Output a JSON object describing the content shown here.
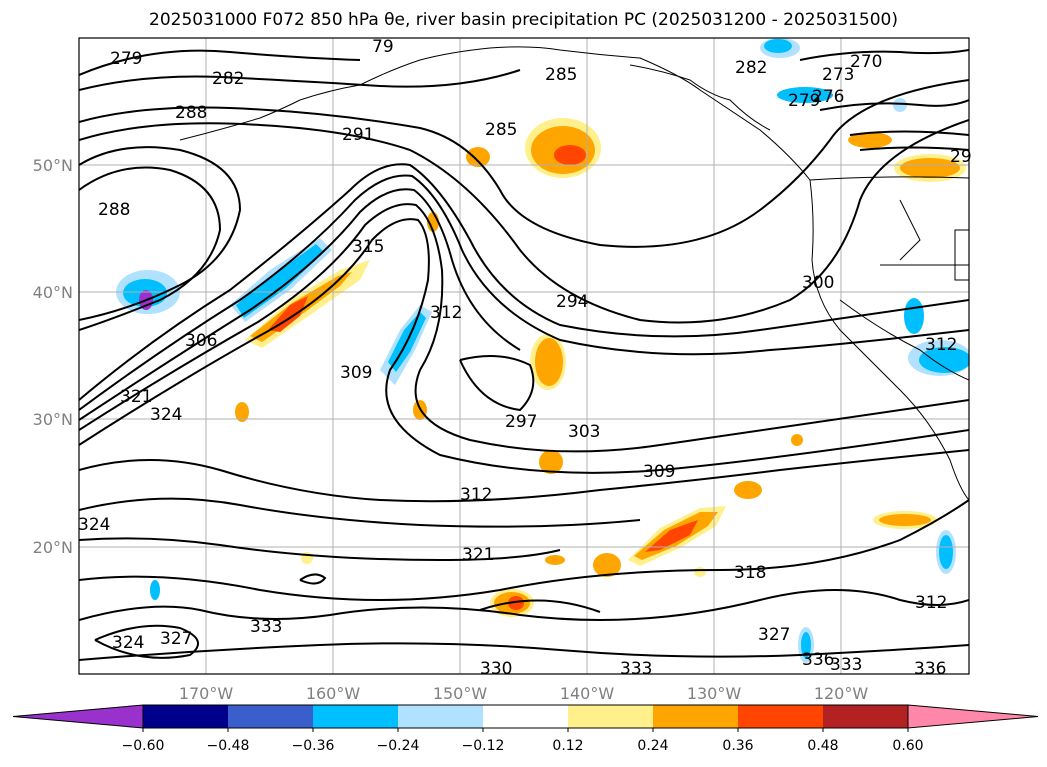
{
  "title": "2025031000 F072 850 hPa θe, river basin precipitation PC (2025031200 - 2025031500)",
  "map": {
    "lat_ticks": [
      "50°N",
      "40°N",
      "30°N",
      "20°N"
    ],
    "lon_ticks": [
      "170°W",
      "160°W",
      "150°W",
      "140°W",
      "130°W",
      "120°W"
    ],
    "contour_labels": [
      "279",
      "79",
      "282",
      "288",
      "291",
      "285",
      "285",
      "282",
      "273",
      "270",
      "276",
      "279",
      "29",
      "288",
      "315",
      "312",
      "294",
      "300",
      "306",
      "309",
      "321",
      "324",
      "297",
      "303",
      "312",
      "309",
      "312",
      "324",
      "321",
      "318",
      "312",
      "333",
      "324",
      "327",
      "327",
      "336",
      "333",
      "330",
      "333",
      "336"
    ]
  },
  "colorbar": {
    "levels": [
      "−0.60",
      "−0.48",
      "−0.36",
      "−0.24",
      "−0.12",
      "0.12",
      "0.24",
      "0.36",
      "0.48",
      "0.60"
    ],
    "colors": [
      "#9932cc",
      "#00008b",
      "#3a5fcd",
      "#00bfff",
      "#b0e2ff",
      "#ffffff",
      "#fff08c",
      "#ffa500",
      "#ff4500",
      "#b22222",
      "#ff88aa"
    ]
  }
}
